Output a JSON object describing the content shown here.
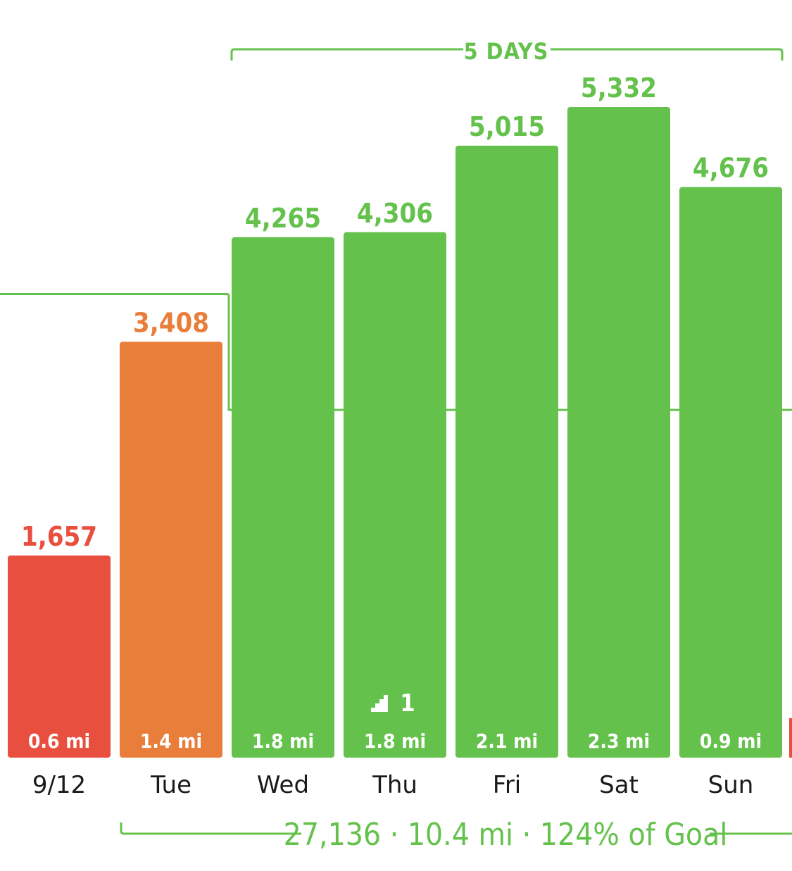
{
  "colors": {
    "green": "#64C24C",
    "orange": "#E97E3A",
    "red": "#E84F3F",
    "text_dark": "#1a1a1a"
  },
  "streak_label": "5 DAYS",
  "summary_text": "27,136 · 10.4 mi · 124% of Goal",
  "floors_count": "1",
  "floors_icon": "stairs-icon",
  "chart_data": {
    "type": "bar",
    "categories": [
      "9/12",
      "Tue",
      "Wed",
      "Thu",
      "Fri",
      "Sat",
      "Sun"
    ],
    "values": [
      1657,
      3408,
      4265,
      4306,
      5015,
      5332,
      4676
    ],
    "value_labels": [
      "1,657",
      "3,408",
      "4,265",
      "4,306",
      "5,015",
      "5,332",
      "4,676"
    ],
    "distances": [
      "0.6 mi",
      "1.4 mi",
      "1.8 mi",
      "1.8 mi",
      "2.1 mi",
      "2.3 mi",
      "0.9 mi"
    ],
    "bar_colors": [
      "red",
      "orange",
      "green",
      "green",
      "green",
      "green",
      "green"
    ],
    "floors_on_category": "Thu",
    "goal_line": {
      "before": 3800,
      "after": 2850
    },
    "ylim": [
      0,
      5332
    ],
    "title": "",
    "xlabel": "",
    "ylabel": "",
    "grid": false,
    "legend": "none"
  }
}
